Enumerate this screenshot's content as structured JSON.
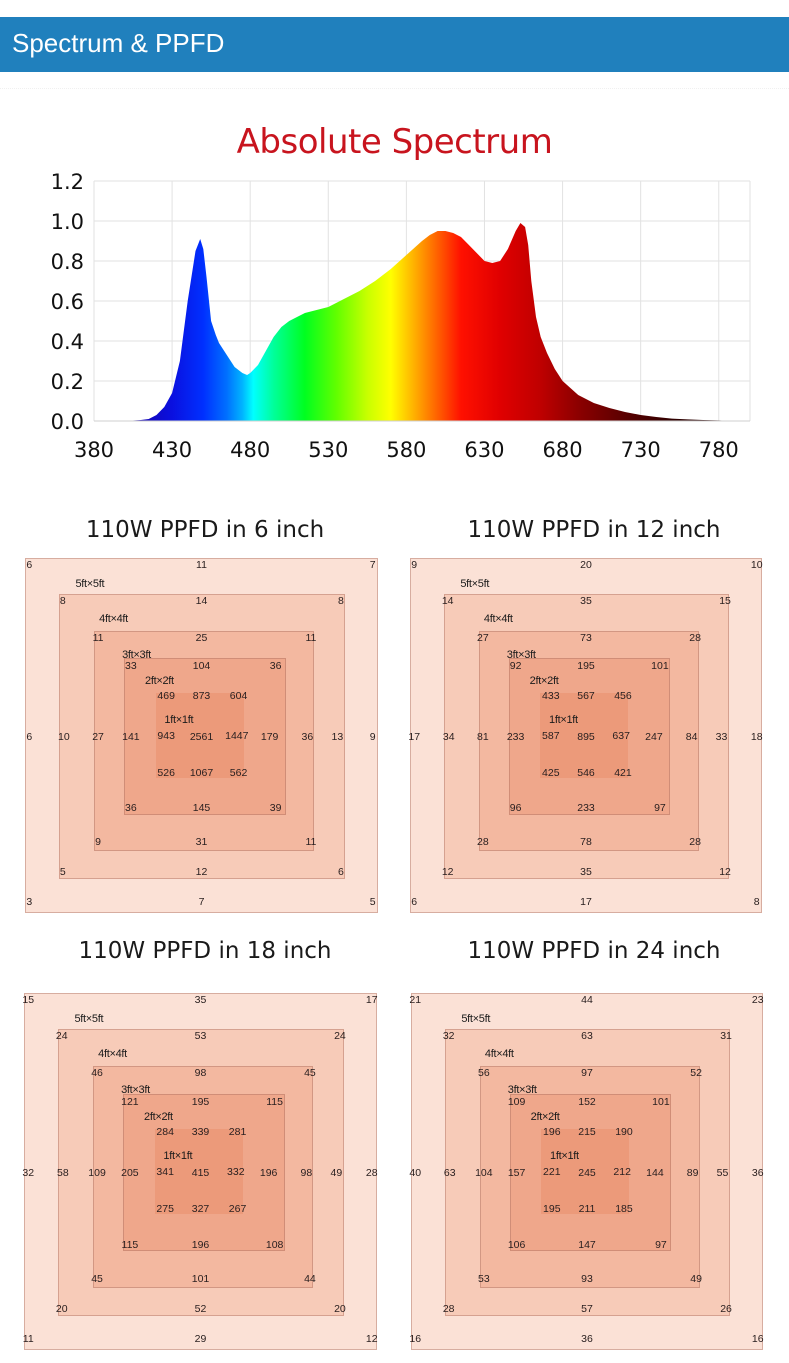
{
  "header": {
    "title": "Spectrum & PPFD",
    "color": "#2080bd"
  },
  "chart_data": [
    {
      "type": "area",
      "title": "Absolute Spectrum",
      "title_color": "#c8141e",
      "xlabel": "",
      "ylabel": "",
      "xlim": [
        380,
        800
      ],
      "ylim": [
        0,
        1.2
      ],
      "grid": true,
      "x_ticks": [
        "380",
        "430",
        "480",
        "530",
        "580",
        "630",
        "680",
        "730",
        "780"
      ],
      "y_ticks": [
        "0.0",
        "0.2",
        "0.4",
        "0.6",
        "0.8",
        "1.0",
        "1.2"
      ],
      "x": [
        400,
        410,
        415,
        420,
        425,
        430,
        435,
        440,
        445,
        448,
        450,
        452,
        455,
        458,
        460,
        465,
        470,
        475,
        478,
        480,
        485,
        490,
        495,
        500,
        505,
        510,
        515,
        520,
        525,
        530,
        540,
        550,
        560,
        570,
        580,
        590,
        595,
        600,
        605,
        610,
        615,
        620,
        625,
        630,
        635,
        640,
        645,
        650,
        653,
        656,
        658,
        660,
        663,
        666,
        670,
        675,
        680,
        690,
        700,
        710,
        720,
        730,
        740,
        750,
        760,
        770,
        780,
        790
      ],
      "values": [
        0.0,
        0.005,
        0.01,
        0.03,
        0.07,
        0.14,
        0.3,
        0.6,
        0.85,
        0.91,
        0.86,
        0.72,
        0.5,
        0.43,
        0.39,
        0.33,
        0.27,
        0.24,
        0.23,
        0.24,
        0.28,
        0.35,
        0.42,
        0.47,
        0.5,
        0.52,
        0.54,
        0.55,
        0.56,
        0.57,
        0.61,
        0.65,
        0.7,
        0.76,
        0.83,
        0.9,
        0.93,
        0.95,
        0.95,
        0.94,
        0.92,
        0.88,
        0.84,
        0.8,
        0.79,
        0.8,
        0.86,
        0.95,
        0.99,
        0.97,
        0.88,
        0.7,
        0.52,
        0.42,
        0.34,
        0.26,
        0.2,
        0.13,
        0.09,
        0.065,
        0.045,
        0.03,
        0.02,
        0.012,
        0.008,
        0.005,
        0.003,
        0.0
      ]
    },
    {
      "type": "table",
      "title": "110W PPFD in 6 inch",
      "zones": [
        "5ft×5ft",
        "4ft×4ft",
        "3ft×3ft",
        "2ft×2ft",
        "1ft×1ft"
      ],
      "rings": {
        "r5": {
          "tl": "6",
          "tc": "11",
          "tr": "7",
          "ml": "6",
          "mr": "9",
          "bl": "3",
          "bc": "7",
          "br": "5"
        },
        "r4": {
          "tl": "8",
          "tc": "14",
          "tr": "8",
          "ml": "10",
          "mr": "13",
          "bl": "5",
          "bc": "12",
          "br": "6"
        },
        "r3": {
          "tl": "11",
          "tc": "25",
          "tr": "11",
          "ml": "27",
          "mr": "36",
          "bl": "9",
          "bc": "31",
          "br": "11"
        },
        "r2": {
          "tl": "33",
          "tc": "104",
          "tr": "36",
          "ml": "141",
          "mr": "179",
          "bl": "36",
          "bc": "145",
          "br": "39"
        },
        "r1": {
          "tl": "469",
          "tc": "873",
          "tr": "604",
          "ml": "943",
          "mc": "2561",
          "mr": "1447",
          "bl": "526",
          "bc": "1067",
          "br": "562"
        }
      }
    },
    {
      "type": "table",
      "title": "110W PPFD in 12 inch",
      "zones": [
        "5ft×5ft",
        "4ft×4ft",
        "3ft×3ft",
        "2ft×2ft",
        "1ft×1ft"
      ],
      "rings": {
        "r5": {
          "tl": "9",
          "tc": "20",
          "tr": "10",
          "ml": "17",
          "mr": "18",
          "bl": "6",
          "bc": "17",
          "br": "8"
        },
        "r4": {
          "tl": "14",
          "tc": "35",
          "tr": "15",
          "ml": "34",
          "mr": "33",
          "bl": "12",
          "bc": "35",
          "br": "12"
        },
        "r3": {
          "tl": "27",
          "tc": "73",
          "tr": "28",
          "ml": "81",
          "mr": "84",
          "bl": "28",
          "bc": "78",
          "br": "28"
        },
        "r2": {
          "tl": "92",
          "tc": "195",
          "tr": "101",
          "ml": "233",
          "mr": "247",
          "bl": "96",
          "bc": "233",
          "br": "97"
        },
        "r1": {
          "tl": "433",
          "tc": "567",
          "tr": "456",
          "ml": "587",
          "mc": "895",
          "mr": "637",
          "bl": "425",
          "bc": "546",
          "br": "421"
        }
      }
    },
    {
      "type": "table",
      "title": "110W PPFD in 18 inch",
      "zones": [
        "5ft×5ft",
        "4ft×4ft",
        "3ft×3ft",
        "2ft×2ft",
        "1ft×1ft"
      ],
      "rings": {
        "r5": {
          "tl": "15",
          "tc": "35",
          "tr": "17",
          "ml": "32",
          "mr": "28",
          "bl": "11",
          "bc": "29",
          "br": "12"
        },
        "r4": {
          "tl": "24",
          "tc": "53",
          "tr": "24",
          "ml": "58",
          "mr": "49",
          "bl": "20",
          "bc": "52",
          "br": "20"
        },
        "r3": {
          "tl": "46",
          "tc": "98",
          "tr": "45",
          "ml": "109",
          "mr": "98",
          "bl": "45",
          "bc": "101",
          "br": "44"
        },
        "r2": {
          "tl": "121",
          "tc": "195",
          "tr": "115",
          "ml": "205",
          "mr": "196",
          "bl": "115",
          "bc": "196",
          "br": "108"
        },
        "r1": {
          "tl": "284",
          "tc": "339",
          "tr": "281",
          "ml": "341",
          "mc": "415",
          "mr": "332",
          "bl": "275",
          "bc": "327",
          "br": "267"
        }
      }
    },
    {
      "type": "table",
      "title": "110W PPFD in 24 inch",
      "zones": [
        "5ft×5ft",
        "4ft×4ft",
        "3ft×3ft",
        "2ft×2ft",
        "1ft×1ft"
      ],
      "rings": {
        "r5": {
          "tl": "21",
          "tc": "44",
          "tr": "23",
          "ml": "40",
          "mr": "36",
          "bl": "16",
          "bc": "36",
          "br": "16"
        },
        "r4": {
          "tl": "32",
          "tc": "63",
          "tr": "31",
          "ml": "63",
          "mr": "55",
          "bl": "28",
          "bc": "57",
          "br": "26"
        },
        "r3": {
          "tl": "56",
          "tc": "97",
          "tr": "52",
          "ml": "104",
          "mr": "89",
          "bl": "53",
          "bc": "93",
          "br": "49"
        },
        "r2": {
          "tl": "109",
          "tc": "152",
          "tr": "101",
          "ml": "157",
          "mr": "144",
          "bl": "106",
          "bc": "147",
          "br": "97"
        },
        "r1": {
          "tl": "196",
          "tc": "215",
          "tr": "190",
          "ml": "221",
          "mc": "245",
          "mr": "212",
          "bl": "195",
          "bc": "211",
          "br": "185"
        }
      }
    }
  ],
  "colors": {
    "zone5": "#fbe1d6",
    "zone4": "#f7cbb8",
    "zone3": "#f3b8a0",
    "zone2": "#efa78b",
    "zone1": "#ec9a7a"
  }
}
